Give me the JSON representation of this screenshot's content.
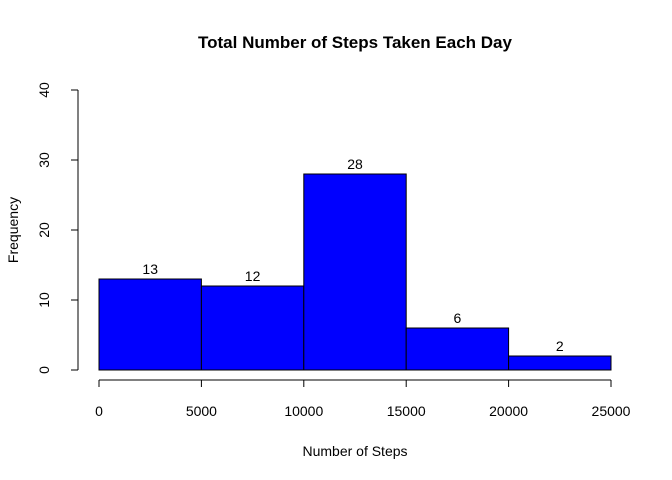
{
  "chart_data": {
    "type": "bar",
    "title": "Total Number of Steps Taken Each Day",
    "xlabel": "Number of Steps",
    "ylabel": "Frequency",
    "bins": [
      {
        "x0": 0,
        "x1": 5000,
        "count": 13,
        "label": "13"
      },
      {
        "x0": 5000,
        "x1": 10000,
        "count": 12,
        "label": "12"
      },
      {
        "x0": 10000,
        "x1": 15000,
        "count": 28,
        "label": "28"
      },
      {
        "x0": 15000,
        "x1": 20000,
        "count": 6,
        "label": "6"
      },
      {
        "x0": 20000,
        "x1": 25000,
        "count": 2,
        "label": "2"
      }
    ],
    "x_ticks": [
      0,
      5000,
      10000,
      15000,
      20000,
      25000
    ],
    "x_tick_labels": [
      "0",
      "5000",
      "10000",
      "15000",
      "20000",
      "25000"
    ],
    "y_ticks": [
      0,
      10,
      20,
      30,
      40
    ],
    "y_tick_labels": [
      "0",
      "10",
      "20",
      "30",
      "40"
    ],
    "xlim": [
      0,
      25000
    ],
    "ylim": [
      0,
      40
    ],
    "bar_color": "#0000ff",
    "border_color": "#000000",
    "grid": false
  }
}
